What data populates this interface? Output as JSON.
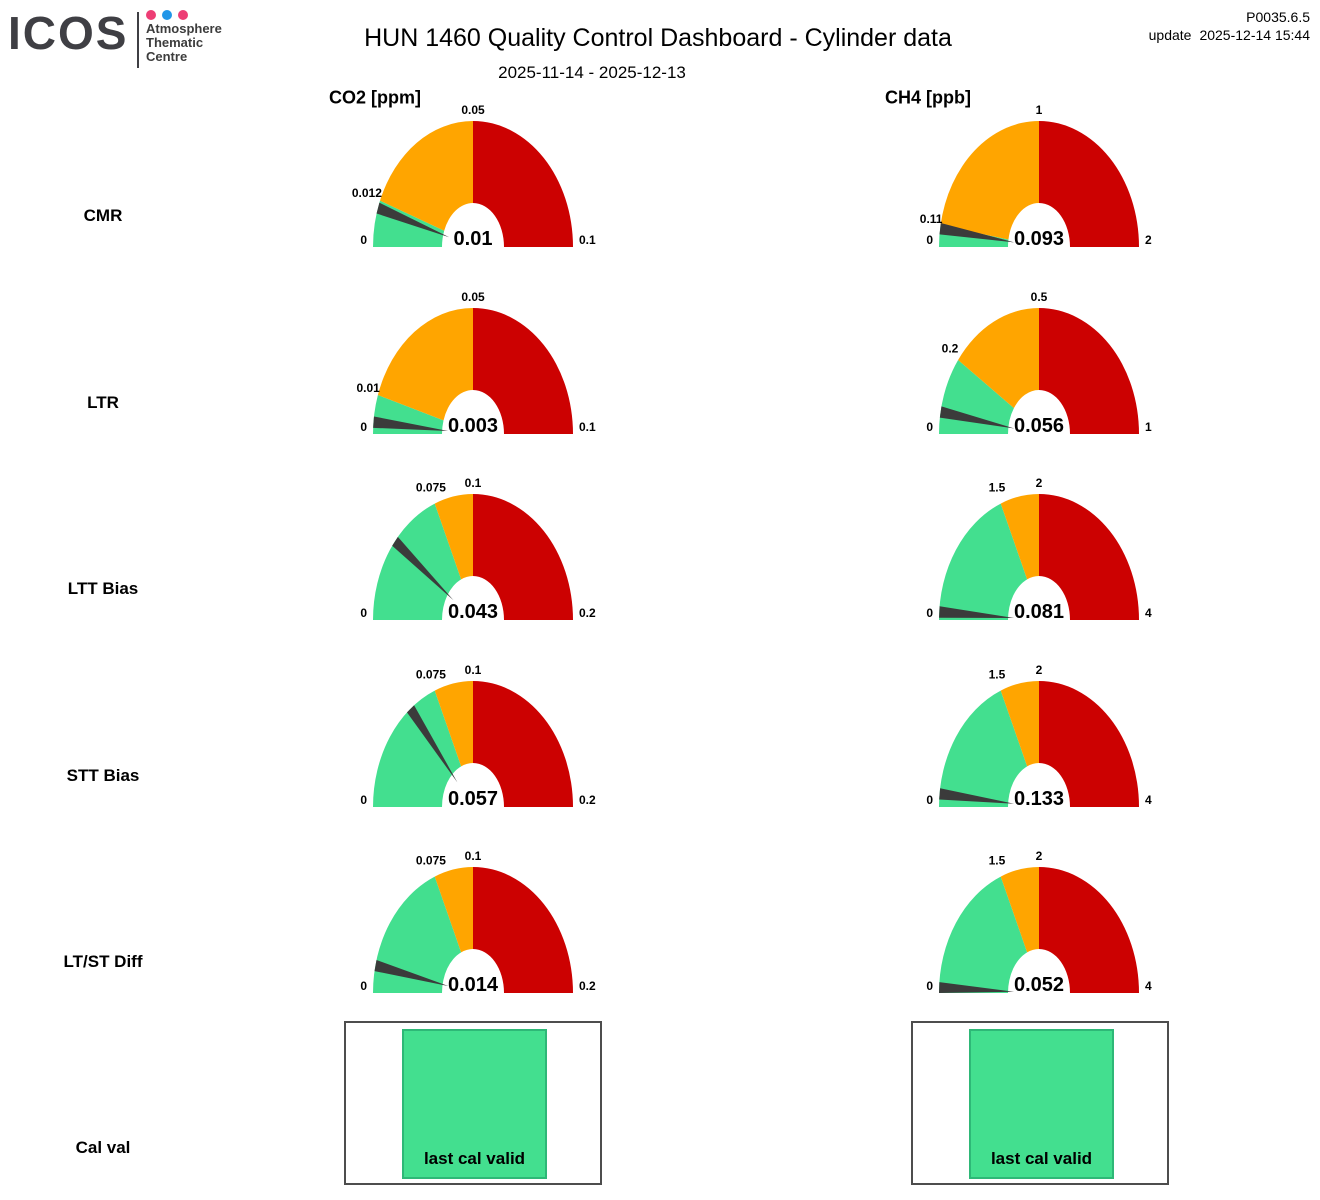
{
  "header": {
    "logo_text": "ICOS",
    "org_lines": [
      "Atmosphere",
      "Thematic",
      "Centre"
    ],
    "dot_colors": [
      "#ed3e75",
      "#2196e8",
      "#ed3e75"
    ],
    "title": "HUN 1460 Quality Control Dashboard - Cylinder data",
    "subtitle": "2025-11-14 - 2025-12-13",
    "product_code": "P0035.6.5",
    "update_label": "update",
    "update_time": "2025-12-14 15:44"
  },
  "columns": [
    {
      "label": "CO2 [ppm]"
    },
    {
      "label": "CH4 [ppb]"
    }
  ],
  "colors": {
    "green": "#43df8f",
    "orange": "#ffa500",
    "red": "#cc0101",
    "needle": "#3b3b3b"
  },
  "chart_data": {
    "type": "gauge",
    "columns": [
      "CO2 [ppm]",
      "CH4 [ppb]"
    ],
    "rows": [
      {
        "label": "CMR",
        "gauges": [
          {
            "metric": "CO2 [ppm]",
            "min": 0,
            "max": 0.1,
            "segments": [
              {
                "end": 0.012,
                "status": "green"
              },
              {
                "end": 0.05,
                "status": "orange"
              },
              {
                "end": 0.1,
                "status": "red"
              }
            ],
            "ticks": [
              "0",
              "0.012",
              "0.05",
              "0.1"
            ],
            "value": 0.01,
            "value_label": "0.01"
          },
          {
            "metric": "CH4 [ppb]",
            "min": 0,
            "max": 2,
            "segments": [
              {
                "end": 0.11,
                "status": "green"
              },
              {
                "end": 1,
                "status": "orange"
              },
              {
                "end": 2,
                "status": "red"
              }
            ],
            "ticks": [
              "0",
              "0.11",
              "1",
              "2"
            ],
            "value": 0.093,
            "value_label": "0.093"
          }
        ]
      },
      {
        "label": "LTR",
        "gauges": [
          {
            "metric": "CO2 [ppm]",
            "min": 0,
            "max": 0.1,
            "segments": [
              {
                "end": 0.01,
                "status": "green"
              },
              {
                "end": 0.05,
                "status": "orange"
              },
              {
                "end": 0.1,
                "status": "red"
              }
            ],
            "ticks": [
              "0",
              "0.01",
              "0.05",
              "0.1"
            ],
            "value": 0.003,
            "value_label": "0.003"
          },
          {
            "metric": "CH4 [ppb]",
            "min": 0,
            "max": 1,
            "segments": [
              {
                "end": 0.2,
                "status": "green"
              },
              {
                "end": 0.5,
                "status": "orange"
              },
              {
                "end": 1,
                "status": "red"
              }
            ],
            "ticks": [
              "0",
              "0.2",
              "0.5",
              "1"
            ],
            "value": 0.056,
            "value_label": "0.056"
          }
        ]
      },
      {
        "label": "LTT Bias",
        "gauges": [
          {
            "metric": "CO2 [ppm]",
            "min": 0,
            "max": 0.2,
            "segments": [
              {
                "end": 0.075,
                "status": "green"
              },
              {
                "end": 0.1,
                "status": "orange"
              },
              {
                "end": 0.2,
                "status": "red"
              }
            ],
            "ticks": [
              "0",
              "0.075",
              "0.1",
              "0.2"
            ],
            "value": 0.043,
            "value_label": "0.043"
          },
          {
            "metric": "CH4 [ppb]",
            "min": 0,
            "max": 4,
            "segments": [
              {
                "end": 1.5,
                "status": "green"
              },
              {
                "end": 2,
                "status": "orange"
              },
              {
                "end": 4,
                "status": "red"
              }
            ],
            "ticks": [
              "0",
              "1.5",
              "2",
              "4"
            ],
            "value": 0.081,
            "value_label": "0.081"
          }
        ]
      },
      {
        "label": "STT Bias",
        "gauges": [
          {
            "metric": "CO2 [ppm]",
            "min": 0,
            "max": 0.2,
            "segments": [
              {
                "end": 0.075,
                "status": "green"
              },
              {
                "end": 0.1,
                "status": "orange"
              },
              {
                "end": 0.2,
                "status": "red"
              }
            ],
            "ticks": [
              "0",
              "0.075",
              "0.1",
              "0.2"
            ],
            "value": 0.057,
            "value_label": "0.057"
          },
          {
            "metric": "CH4 [ppb]",
            "min": 0,
            "max": 4,
            "segments": [
              {
                "end": 1.5,
                "status": "green"
              },
              {
                "end": 2,
                "status": "orange"
              },
              {
                "end": 4,
                "status": "red"
              }
            ],
            "ticks": [
              "0",
              "1.5",
              "2",
              "4"
            ],
            "value": 0.133,
            "value_label": "0.133"
          }
        ]
      },
      {
        "label": "LT/ST Diff",
        "gauges": [
          {
            "metric": "CO2 [ppm]",
            "min": 0,
            "max": 0.2,
            "segments": [
              {
                "end": 0.075,
                "status": "green"
              },
              {
                "end": 0.1,
                "status": "orange"
              },
              {
                "end": 0.2,
                "status": "red"
              }
            ],
            "ticks": [
              "0",
              "0.075",
              "0.1",
              "0.2"
            ],
            "value": 0.014,
            "value_label": "0.014"
          },
          {
            "metric": "CH4 [ppb]",
            "min": 0,
            "max": 4,
            "segments": [
              {
                "end": 1.5,
                "status": "green"
              },
              {
                "end": 2,
                "status": "orange"
              },
              {
                "end": 4,
                "status": "red"
              }
            ],
            "ticks": [
              "0",
              "1.5",
              "2",
              "4"
            ],
            "value": 0.052,
            "value_label": "0.052"
          }
        ]
      }
    ],
    "cal_row": {
      "label": "Cal val",
      "cells": [
        "last cal valid",
        "last cal valid"
      ]
    }
  }
}
